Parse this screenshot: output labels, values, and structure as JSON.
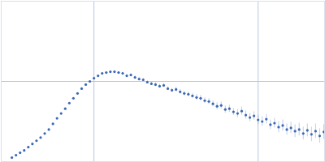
{
  "chart_data": {
    "type": "scatter",
    "color": "#3b68b5",
    "marker": "circle",
    "grid": true,
    "tick_labels": false,
    "xlim": [
      -0.013,
      0.381
    ],
    "ylim": [
      0,
      1
    ],
    "xticks": [
      0.1,
      0.3
    ],
    "yticks": [
      0.5
    ],
    "x": [
      0.0,
      0.005,
      0.01,
      0.015,
      0.02,
      0.025,
      0.03,
      0.035,
      0.04,
      0.045,
      0.05,
      0.055,
      0.06,
      0.065,
      0.07,
      0.075,
      0.08,
      0.085,
      0.09,
      0.095,
      0.1,
      0.105,
      0.11,
      0.115,
      0.12,
      0.125,
      0.13,
      0.135,
      0.14,
      0.145,
      0.15,
      0.155,
      0.16,
      0.165,
      0.17,
      0.175,
      0.18,
      0.185,
      0.19,
      0.195,
      0.2,
      0.205,
      0.21,
      0.215,
      0.22,
      0.225,
      0.23,
      0.235,
      0.24,
      0.245,
      0.25,
      0.255,
      0.26,
      0.265,
      0.27,
      0.275,
      0.28,
      0.285,
      0.29,
      0.295,
      0.3,
      0.305,
      0.31,
      0.315,
      0.32,
      0.325,
      0.33,
      0.335,
      0.34,
      0.345,
      0.35,
      0.355,
      0.36,
      0.365,
      0.37,
      0.375,
      0.38
    ],
    "values": [
      0.025,
      0.04,
      0.055,
      0.07,
      0.09,
      0.11,
      0.13,
      0.15,
      0.175,
      0.2,
      0.235,
      0.27,
      0.3,
      0.33,
      0.365,
      0.395,
      0.425,
      0.455,
      0.48,
      0.5,
      0.52,
      0.535,
      0.55,
      0.555,
      0.56,
      0.56,
      0.555,
      0.55,
      0.535,
      0.54,
      0.525,
      0.515,
      0.51,
      0.495,
      0.485,
      0.48,
      0.47,
      0.475,
      0.455,
      0.445,
      0.45,
      0.435,
      0.425,
      0.42,
      0.41,
      0.4,
      0.395,
      0.38,
      0.375,
      0.36,
      0.345,
      0.35,
      0.325,
      0.33,
      0.31,
      0.3,
      0.315,
      0.29,
      0.275,
      0.285,
      0.26,
      0.25,
      0.265,
      0.23,
      0.24,
      0.215,
      0.225,
      0.2,
      0.21,
      0.19,
      0.2,
      0.175,
      0.195,
      0.17,
      0.19,
      0.16,
      0.185
    ],
    "errors": [
      0.003,
      0.003,
      0.003,
      0.003,
      0.003,
      0.003,
      0.003,
      0.003,
      0.003,
      0.003,
      0.004,
      0.004,
      0.004,
      0.004,
      0.004,
      0.004,
      0.004,
      0.004,
      0.004,
      0.004,
      0.006,
      0.006,
      0.006,
      0.006,
      0.006,
      0.008,
      0.008,
      0.008,
      0.008,
      0.008,
      0.01,
      0.01,
      0.01,
      0.01,
      0.01,
      0.012,
      0.012,
      0.012,
      0.012,
      0.012,
      0.015,
      0.015,
      0.015,
      0.015,
      0.015,
      0.018,
      0.018,
      0.018,
      0.018,
      0.018,
      0.022,
      0.022,
      0.022,
      0.022,
      0.022,
      0.026,
      0.026,
      0.026,
      0.026,
      0.026,
      0.03,
      0.03,
      0.03,
      0.03,
      0.03,
      0.035,
      0.035,
      0.035,
      0.035,
      0.04,
      0.04,
      0.04,
      0.04,
      0.045,
      0.045,
      0.045,
      0.045
    ]
  }
}
